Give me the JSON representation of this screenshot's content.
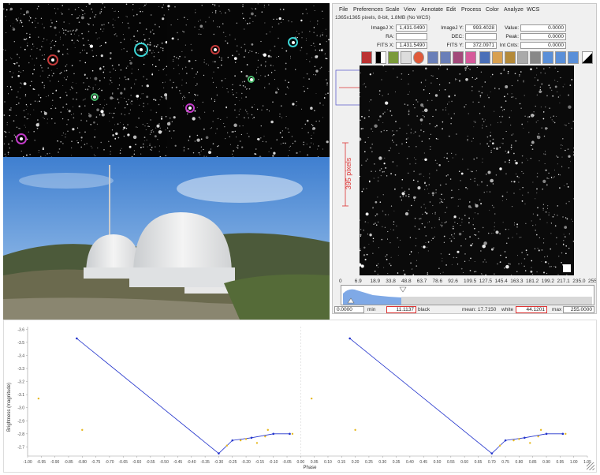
{
  "imagej": {
    "menus": [
      "File",
      "Preferences",
      "Scale",
      "View",
      "Annotate",
      "Edit",
      "Process",
      "Color",
      "Analyze",
      "WCS"
    ],
    "subtitle": "1365x1365 pixels, 8-bit, 1.8MB (No WCS)",
    "fields": {
      "imagej_x_label": "ImageJ X:",
      "imagej_x": "1,431.0490",
      "imagej_y_label": "ImageJ Y:",
      "imagej_y": "993.4028",
      "value_label": "Value:",
      "value": "0.0000",
      "ra_label": "RA:",
      "ra": "",
      "dec_label": "DEC:",
      "dec": "",
      "peak_label": "Peak:",
      "peak": "0.0000",
      "fits_x_label": "FITS X:",
      "fits_x": "1,431.5490",
      "fits_y_label": "FITS Y:",
      "fits_y": "372.0971",
      "int_cnts_label": "Int Cnts:",
      "int_cnts": "0.0000"
    },
    "scale_label": "395 pixels",
    "hist_ticks": [
      "0",
      "6.9",
      "18.9",
      "33.8",
      "48.8",
      "63.7",
      "78.6",
      "92.6",
      "109.5",
      "127.5",
      "145.4",
      "163.3",
      "181.2",
      "199.2",
      "217.1",
      "235.0",
      "255"
    ],
    "bottom": {
      "min_value": "0.0000",
      "min_label": "min",
      "black_value": "11.1137",
      "black_label": "black",
      "mean_label": "mean: 17.7150",
      "white_label": "white",
      "white_value": "44.1201",
      "max_label": "max",
      "max_value": "255.0000"
    },
    "colors": {
      "accent": "#d33030",
      "hist_fill": "#7fa9e6"
    }
  },
  "chart_data": {
    "type": "line",
    "title": "",
    "xlabel": "Phase",
    "ylabel": "Brightness (magnitude)",
    "xlim": [
      -1.0,
      1.05
    ],
    "ylim": [
      -3.62,
      -2.63
    ],
    "x_ticks": [
      "-1.00",
      "-0.95",
      "-0.90",
      "-0.85",
      "-0.80",
      "-0.75",
      "-0.70",
      "-0.65",
      "-0.60",
      "-0.55",
      "-0.50",
      "-0.45",
      "-0.40",
      "-0.35",
      "-0.30",
      "-0.25",
      "-0.20",
      "-0.15",
      "-0.10",
      "-0.05",
      "0.00",
      "0.05",
      "0.10",
      "0.15",
      "0.20",
      "0.25",
      "0.30",
      "0.35",
      "0.40",
      "0.45",
      "0.50",
      "0.55",
      "0.60",
      "0.65",
      "0.70",
      "0.75",
      "0.80",
      "0.85",
      "0.90",
      "0.95",
      "1.00",
      "1.05"
    ],
    "y_ticks": [
      "-3.6",
      "-3.5",
      "-3.4",
      "-3.3",
      "-3.2",
      "-3.1",
      "-3.0",
      "-2.9",
      "-2.8",
      "-2.7"
    ],
    "series": [
      {
        "values_x": [
          -0.82,
          -0.3,
          -0.25,
          -0.18,
          -0.1,
          -0.04
        ],
        "values_y": [
          -3.53,
          -2.65,
          -2.75,
          -2.77,
          -2.8,
          -2.8
        ],
        "color": "#2233cc"
      },
      {
        "values_x": [
          0.18,
          0.7,
          0.75,
          0.82,
          0.9,
          0.96
        ],
        "values_y": [
          -3.53,
          -2.65,
          -2.75,
          -2.77,
          -2.8,
          -2.8
        ],
        "color": "#2233cc"
      }
    ],
    "scatter": {
      "x": [
        -0.96,
        -0.8,
        -0.27,
        -0.22,
        -0.2,
        -0.16,
        -0.13,
        -0.12,
        -0.03,
        0.04,
        0.2,
        0.73,
        0.78,
        0.8,
        0.84,
        0.87,
        0.88,
        0.97
      ],
      "y": [
        -3.07,
        -2.83,
        -2.71,
        -2.75,
        -2.76,
        -2.73,
        -2.78,
        -2.83,
        -2.8,
        -3.07,
        -2.83,
        -2.71,
        -2.75,
        -2.76,
        -2.73,
        -2.78,
        -2.83,
        -2.8
      ],
      "color": "#e6b820"
    }
  }
}
